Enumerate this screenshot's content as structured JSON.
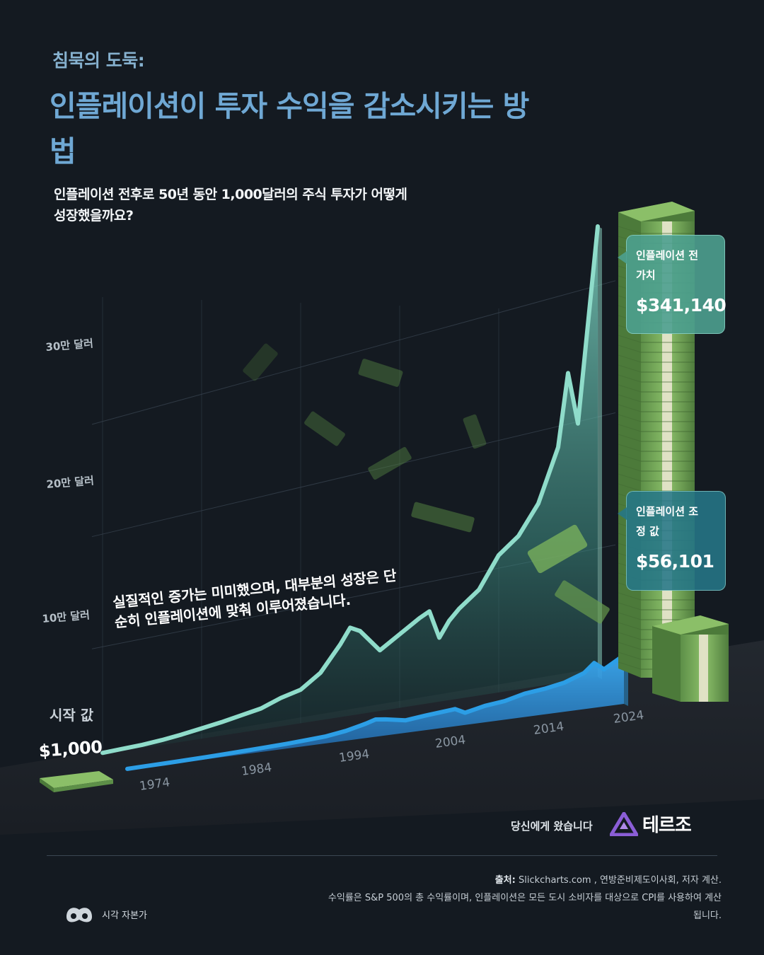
{
  "header": {
    "kicker": "침묵의 도둑:",
    "title": "인플레이션이 투자 수익을 감소시키는 방법",
    "subtitle": "인플레이션 전후로 50년 동안 1,000달러의 주식 투자가 어떻게 성장했을까요?"
  },
  "chart_data": {
    "type": "area",
    "x": [
      1974,
      1976,
      1978,
      1980,
      1982,
      1984,
      1986,
      1988,
      1990,
      1992,
      1994,
      1996,
      1998,
      1999,
      2000,
      2002,
      2004,
      2006,
      2007,
      2008,
      2009,
      2010,
      2012,
      2014,
      2016,
      2018,
      2019,
      2020,
      2021,
      2022,
      2024
    ],
    "x_ticks": [
      "1974",
      "1984",
      "1994",
      "2004",
      "2014",
      "2024"
    ],
    "y_ticks": [
      "10만 달러",
      "20만 달러",
      "30만 달러"
    ],
    "series": [
      {
        "name": "인플레이션 전 가치",
        "color": "#8fdcca",
        "values": [
          1000,
          1800,
          2600,
          4000,
          6000,
          8500,
          11000,
          14000,
          17000,
          23000,
          27000,
          38000,
          58000,
          70000,
          66000,
          48000,
          58000,
          68000,
          72000,
          50000,
          62000,
          70000,
          82000,
          106000,
          118000,
          140000,
          160000,
          180000,
          235000,
          195000,
          341140
        ]
      },
      {
        "name": "인플레이션 조정 값",
        "color": "#2c9ee6",
        "values": [
          1000,
          1400,
          1800,
          2200,
          2700,
          3400,
          4100,
          5000,
          5800,
          7200,
          8600,
          12000,
          17500,
          21000,
          19500,
          15000,
          17500,
          19500,
          20500,
          14500,
          17000,
          19500,
          22000,
          27500,
          30000,
          34000,
          38000,
          42000,
          52000,
          43000,
          56101
        ]
      }
    ],
    "ylim": [
      0,
      341140
    ],
    "start_label": "시작 값",
    "start_value": "$1,000",
    "annotation": "실질적인 증가는 미미했으며, 대부분의 성장은 단순히 인플레이션에 맞춰 이루어졌습니다."
  },
  "callouts": {
    "nominal": {
      "label": "인플레이션 전 가치",
      "value": "$341,140"
    },
    "real": {
      "label": "인플레이션 조정 값",
      "value": "$56,101"
    }
  },
  "footer": {
    "presented_by": "당신에게 왔습니다",
    "brand": "테르조",
    "source_label": "출처:",
    "source_text": "Slickcharts.com , 연방준비제도이사회, 저자 계산.",
    "note": "수익률은 S&P 500의 총 수익률이며, 인플레이션은 모든 도시 소비자를 대상으로 CPI를 사용하여 계산됩니다.",
    "credit": "시각 자본가"
  },
  "colors": {
    "background": "#141a21",
    "title": "#6fa8d4",
    "nominal": "#8fdcca",
    "real": "#2c9ee6",
    "money": "#5f9a4a"
  },
  "icons": {
    "brand_logo": "tezro-triangle-icon",
    "credit_logo": "visual-capitalist-icon",
    "decor": "money-stack-icon"
  }
}
